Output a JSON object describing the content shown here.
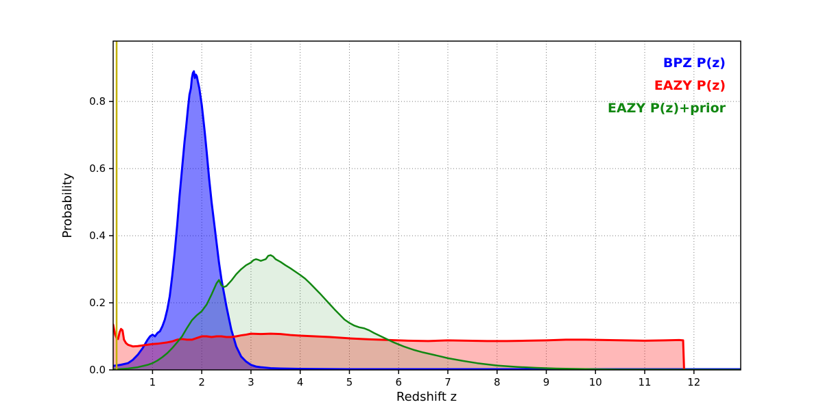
{
  "figure": {
    "background": "#ffffff"
  },
  "chart_data": {
    "type": "line",
    "title": "",
    "xlabel": "Redshift z",
    "ylabel": "Probability",
    "xlim": [
      0.2,
      12.95
    ],
    "ylim": [
      0,
      0.98
    ],
    "xticks": [
      1,
      2,
      3,
      4,
      5,
      6,
      7,
      8,
      9,
      10,
      11,
      12
    ],
    "yticks": [
      0.0,
      0.2,
      0.4,
      0.6,
      0.8
    ],
    "grid": true,
    "grid_style": "dotted",
    "legend_position": "upper right",
    "vline": {
      "x": 0.27,
      "color": "#c3b200",
      "width": 2.5,
      "name": "marker-vline"
    },
    "series": [
      {
        "name": "BPZ P(z)",
        "color": "#0000ff",
        "fill_alpha": 0.5,
        "line_width": 3,
        "points": [
          [
            0.2,
            0.012
          ],
          [
            0.35,
            0.015
          ],
          [
            0.5,
            0.02
          ],
          [
            0.6,
            0.03
          ],
          [
            0.7,
            0.045
          ],
          [
            0.8,
            0.065
          ],
          [
            0.9,
            0.09
          ],
          [
            0.95,
            0.1
          ],
          [
            1.0,
            0.105
          ],
          [
            1.05,
            0.1
          ],
          [
            1.1,
            0.11
          ],
          [
            1.15,
            0.115
          ],
          [
            1.2,
            0.13
          ],
          [
            1.25,
            0.15
          ],
          [
            1.3,
            0.18
          ],
          [
            1.35,
            0.22
          ],
          [
            1.4,
            0.28
          ],
          [
            1.45,
            0.35
          ],
          [
            1.5,
            0.43
          ],
          [
            1.55,
            0.52
          ],
          [
            1.6,
            0.6
          ],
          [
            1.65,
            0.68
          ],
          [
            1.68,
            0.72
          ],
          [
            1.7,
            0.75
          ],
          [
            1.72,
            0.78
          ],
          [
            1.75,
            0.82
          ],
          [
            1.78,
            0.84
          ],
          [
            1.8,
            0.87
          ],
          [
            1.82,
            0.885
          ],
          [
            1.84,
            0.89
          ],
          [
            1.86,
            0.87
          ],
          [
            1.88,
            0.88
          ],
          [
            1.9,
            0.875
          ],
          [
            1.92,
            0.86
          ],
          [
            1.95,
            0.84
          ],
          [
            1.98,
            0.81
          ],
          [
            2.0,
            0.79
          ],
          [
            2.03,
            0.75
          ],
          [
            2.06,
            0.71
          ],
          [
            2.1,
            0.65
          ],
          [
            2.15,
            0.57
          ],
          [
            2.2,
            0.5
          ],
          [
            2.25,
            0.44
          ],
          [
            2.3,
            0.38
          ],
          [
            2.35,
            0.32
          ],
          [
            2.4,
            0.27
          ],
          [
            2.45,
            0.23
          ],
          [
            2.5,
            0.19
          ],
          [
            2.55,
            0.155
          ],
          [
            2.6,
            0.12
          ],
          [
            2.65,
            0.095
          ],
          [
            2.7,
            0.07
          ],
          [
            2.75,
            0.055
          ],
          [
            2.8,
            0.04
          ],
          [
            2.9,
            0.025
          ],
          [
            3.0,
            0.015
          ],
          [
            3.1,
            0.01
          ],
          [
            3.2,
            0.008
          ],
          [
            3.4,
            0.005
          ],
          [
            3.6,
            0.004
          ],
          [
            4.0,
            0.003
          ],
          [
            5.0,
            0.002
          ],
          [
            7.0,
            0.002
          ],
          [
            10.0,
            0.002
          ],
          [
            12.95,
            0.002
          ]
        ]
      },
      {
        "name": "EAZY P(z)",
        "color": "#ff0000",
        "fill_alpha": 0.28,
        "line_width": 3,
        "points": [
          [
            0.2,
            0.135
          ],
          [
            0.24,
            0.105
          ],
          [
            0.27,
            0.095
          ],
          [
            0.3,
            0.092
          ],
          [
            0.33,
            0.112
          ],
          [
            0.36,
            0.122
          ],
          [
            0.39,
            0.118
          ],
          [
            0.42,
            0.09
          ],
          [
            0.46,
            0.08
          ],
          [
            0.5,
            0.075
          ],
          [
            0.6,
            0.07
          ],
          [
            0.7,
            0.071
          ],
          [
            0.8,
            0.073
          ],
          [
            0.9,
            0.075
          ],
          [
            1.0,
            0.077
          ],
          [
            1.1,
            0.078
          ],
          [
            1.2,
            0.08
          ],
          [
            1.3,
            0.082
          ],
          [
            1.4,
            0.085
          ],
          [
            1.5,
            0.09
          ],
          [
            1.6,
            0.092
          ],
          [
            1.7,
            0.09
          ],
          [
            1.8,
            0.09
          ],
          [
            1.9,
            0.095
          ],
          [
            2.0,
            0.1
          ],
          [
            2.1,
            0.1
          ],
          [
            2.2,
            0.098
          ],
          [
            2.3,
            0.1
          ],
          [
            2.4,
            0.1
          ],
          [
            2.5,
            0.098
          ],
          [
            2.6,
            0.098
          ],
          [
            2.7,
            0.1
          ],
          [
            2.8,
            0.103
          ],
          [
            2.9,
            0.105
          ],
          [
            3.0,
            0.108
          ],
          [
            3.2,
            0.107
          ],
          [
            3.4,
            0.108
          ],
          [
            3.6,
            0.107
          ],
          [
            3.8,
            0.104
          ],
          [
            4.0,
            0.102
          ],
          [
            4.3,
            0.1
          ],
          [
            4.6,
            0.098
          ],
          [
            5.0,
            0.094
          ],
          [
            5.4,
            0.091
          ],
          [
            5.8,
            0.089
          ],
          [
            6.2,
            0.087
          ],
          [
            6.6,
            0.086
          ],
          [
            7.0,
            0.088
          ],
          [
            7.4,
            0.087
          ],
          [
            7.8,
            0.086
          ],
          [
            8.2,
            0.086
          ],
          [
            8.6,
            0.087
          ],
          [
            9.0,
            0.088
          ],
          [
            9.4,
            0.09
          ],
          [
            9.8,
            0.09
          ],
          [
            10.2,
            0.089
          ],
          [
            10.6,
            0.088
          ],
          [
            11.0,
            0.087
          ],
          [
            11.4,
            0.088
          ],
          [
            11.7,
            0.089
          ],
          [
            11.78,
            0.088
          ],
          [
            11.8,
            0.0
          ]
        ]
      },
      {
        "name": "EAZY P(z)+prior",
        "color": "#128712",
        "fill_alpha": 0.12,
        "line_width": 2.5,
        "points": [
          [
            0.2,
            0.001
          ],
          [
            0.5,
            0.004
          ],
          [
            0.7,
            0.008
          ],
          [
            0.9,
            0.015
          ],
          [
            1.0,
            0.02
          ],
          [
            1.1,
            0.028
          ],
          [
            1.2,
            0.038
          ],
          [
            1.3,
            0.05
          ],
          [
            1.4,
            0.065
          ],
          [
            1.5,
            0.082
          ],
          [
            1.6,
            0.1
          ],
          [
            1.7,
            0.125
          ],
          [
            1.8,
            0.148
          ],
          [
            1.9,
            0.163
          ],
          [
            2.0,
            0.175
          ],
          [
            2.1,
            0.195
          ],
          [
            2.2,
            0.225
          ],
          [
            2.3,
            0.258
          ],
          [
            2.35,
            0.268
          ],
          [
            2.4,
            0.252
          ],
          [
            2.45,
            0.247
          ],
          [
            2.5,
            0.25
          ],
          [
            2.6,
            0.266
          ],
          [
            2.7,
            0.285
          ],
          [
            2.8,
            0.3
          ],
          [
            2.9,
            0.312
          ],
          [
            3.0,
            0.32
          ],
          [
            3.05,
            0.327
          ],
          [
            3.1,
            0.33
          ],
          [
            3.15,
            0.328
          ],
          [
            3.2,
            0.325
          ],
          [
            3.3,
            0.33
          ],
          [
            3.35,
            0.34
          ],
          [
            3.4,
            0.342
          ],
          [
            3.45,
            0.338
          ],
          [
            3.5,
            0.33
          ],
          [
            3.6,
            0.322
          ],
          [
            3.7,
            0.312
          ],
          [
            3.8,
            0.303
          ],
          [
            3.9,
            0.293
          ],
          [
            4.0,
            0.283
          ],
          [
            4.1,
            0.272
          ],
          [
            4.2,
            0.258
          ],
          [
            4.3,
            0.243
          ],
          [
            4.4,
            0.228
          ],
          [
            4.5,
            0.212
          ],
          [
            4.6,
            0.196
          ],
          [
            4.7,
            0.18
          ],
          [
            4.8,
            0.165
          ],
          [
            4.9,
            0.15
          ],
          [
            5.0,
            0.14
          ],
          [
            5.1,
            0.132
          ],
          [
            5.2,
            0.127
          ],
          [
            5.3,
            0.124
          ],
          [
            5.4,
            0.118
          ],
          [
            5.5,
            0.11
          ],
          [
            5.7,
            0.096
          ],
          [
            5.9,
            0.082
          ],
          [
            6.1,
            0.07
          ],
          [
            6.3,
            0.06
          ],
          [
            6.5,
            0.052
          ],
          [
            6.8,
            0.042
          ],
          [
            7.0,
            0.035
          ],
          [
            7.3,
            0.027
          ],
          [
            7.6,
            0.02
          ],
          [
            8.0,
            0.013
          ],
          [
            8.4,
            0.009
          ],
          [
            8.8,
            0.006
          ],
          [
            9.2,
            0.004
          ],
          [
            9.6,
            0.003
          ],
          [
            10.0,
            0.002
          ],
          [
            10.5,
            0.001
          ],
          [
            11.0,
            0.001
          ],
          [
            12.0,
            0.0005
          ],
          [
            12.95,
            0.0003
          ]
        ]
      }
    ],
    "legend": {
      "items": [
        {
          "label": "BPZ P(z)",
          "color": "#0000ff"
        },
        {
          "label": "EAZY P(z)",
          "color": "#ff0000"
        },
        {
          "label": "EAZY P(z)+prior",
          "color": "#128712"
        }
      ]
    }
  }
}
